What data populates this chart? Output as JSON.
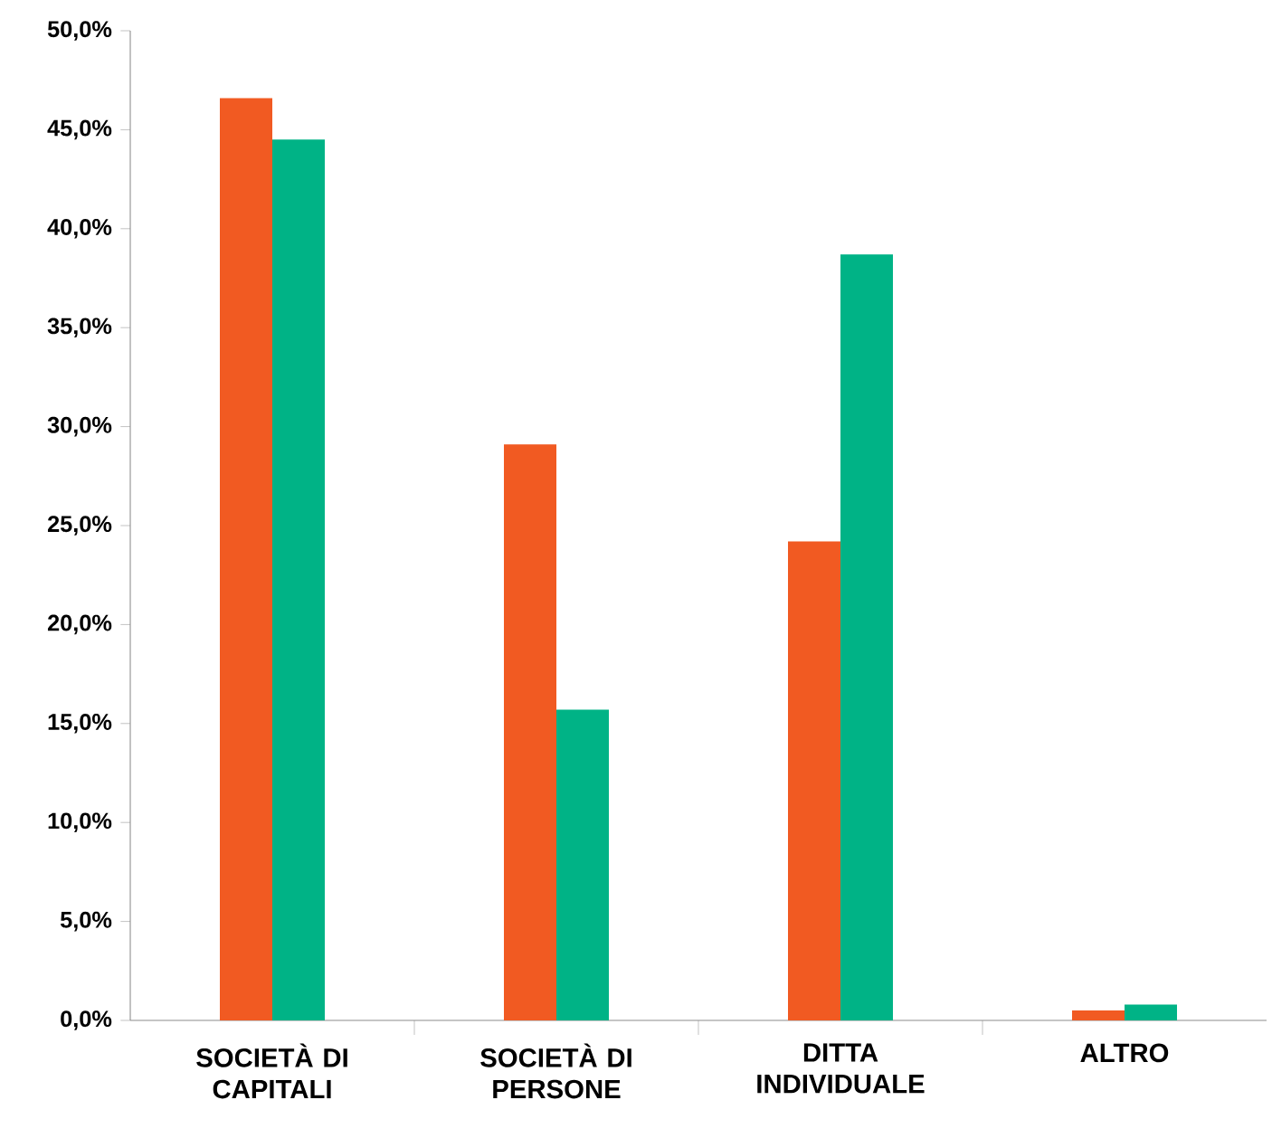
{
  "chart_data": {
    "type": "bar",
    "categories": [
      "SOCIETÀ DI CAPITALI",
      "SOCIETÀ DI PERSONE",
      "DITTA INDIVIDUALE",
      "ALTRO"
    ],
    "series": [
      {
        "color": "#f15a22",
        "values": [
          46.6,
          29.1,
          24.2,
          0.5
        ]
      },
      {
        "color": "#00b386",
        "values": [
          44.5,
          15.7,
          38.7,
          0.8
        ]
      }
    ],
    "ylim": [
      0,
      50
    ],
    "yticks": [
      {
        "value": 0,
        "label": "0,0%"
      },
      {
        "value": 5,
        "label": "5,0%"
      },
      {
        "value": 10,
        "label": "10,0%"
      },
      {
        "value": 15,
        "label": "15,0%"
      },
      {
        "value": 20,
        "label": "20,0%"
      },
      {
        "value": 25,
        "label": "25,0%"
      },
      {
        "value": 30,
        "label": "30,0%"
      },
      {
        "value": 35,
        "label": "35,0%"
      },
      {
        "value": 40,
        "label": "40,0%"
      },
      {
        "value": 45,
        "label": "45,0%"
      },
      {
        "value": 50,
        "label": "50,0%"
      }
    ],
    "grid": false
  }
}
